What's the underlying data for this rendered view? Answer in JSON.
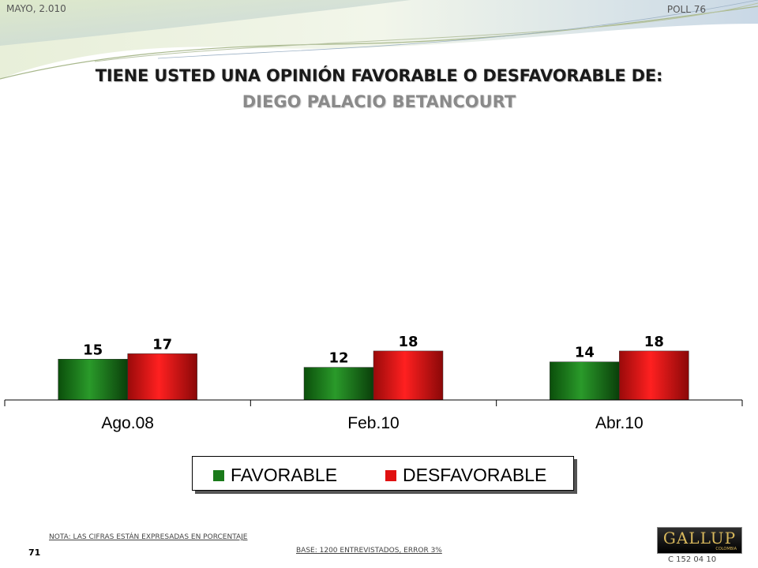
{
  "header": {
    "date": "MAYO, 2.010",
    "poll": "POLL 76"
  },
  "title": {
    "line1": "TIENE USTED UNA OPINIÓN FAVORABLE O DESFAVORABLE DE:",
    "line2": "DIEGO PALACIO BETANCOURT"
  },
  "chart_data": {
    "type": "bar",
    "categories": [
      "Ago.08",
      "Feb.10",
      "Abr.10"
    ],
    "series": [
      {
        "name": "FAVORABLE",
        "values": [
          15,
          12,
          14
        ],
        "color": "#1a7a1a"
      },
      {
        "name": "DESFAVORABLE",
        "values": [
          17,
          18,
          18
        ],
        "color": "#e01010"
      }
    ],
    "ylim": [
      0,
      18
    ],
    "grid": false,
    "legend_position": "bottom",
    "data_labels": true
  },
  "legend": {
    "items": [
      {
        "label": "FAVORABLE",
        "color": "#1a7a1a"
      },
      {
        "label": "DESFAVORABLE",
        "color": "#e01010"
      }
    ]
  },
  "footer": {
    "note": "NOTA: LAS CIFRAS ESTÁN EXPRESADAS EN PORCENTAJE",
    "base": "BASE: 1200 ENTREVISTADOS, ERROR 3%",
    "page_number": "71",
    "code": "C 152 04 10",
    "logo_text": "GALLUP",
    "logo_sub": "COLOMBIA"
  }
}
